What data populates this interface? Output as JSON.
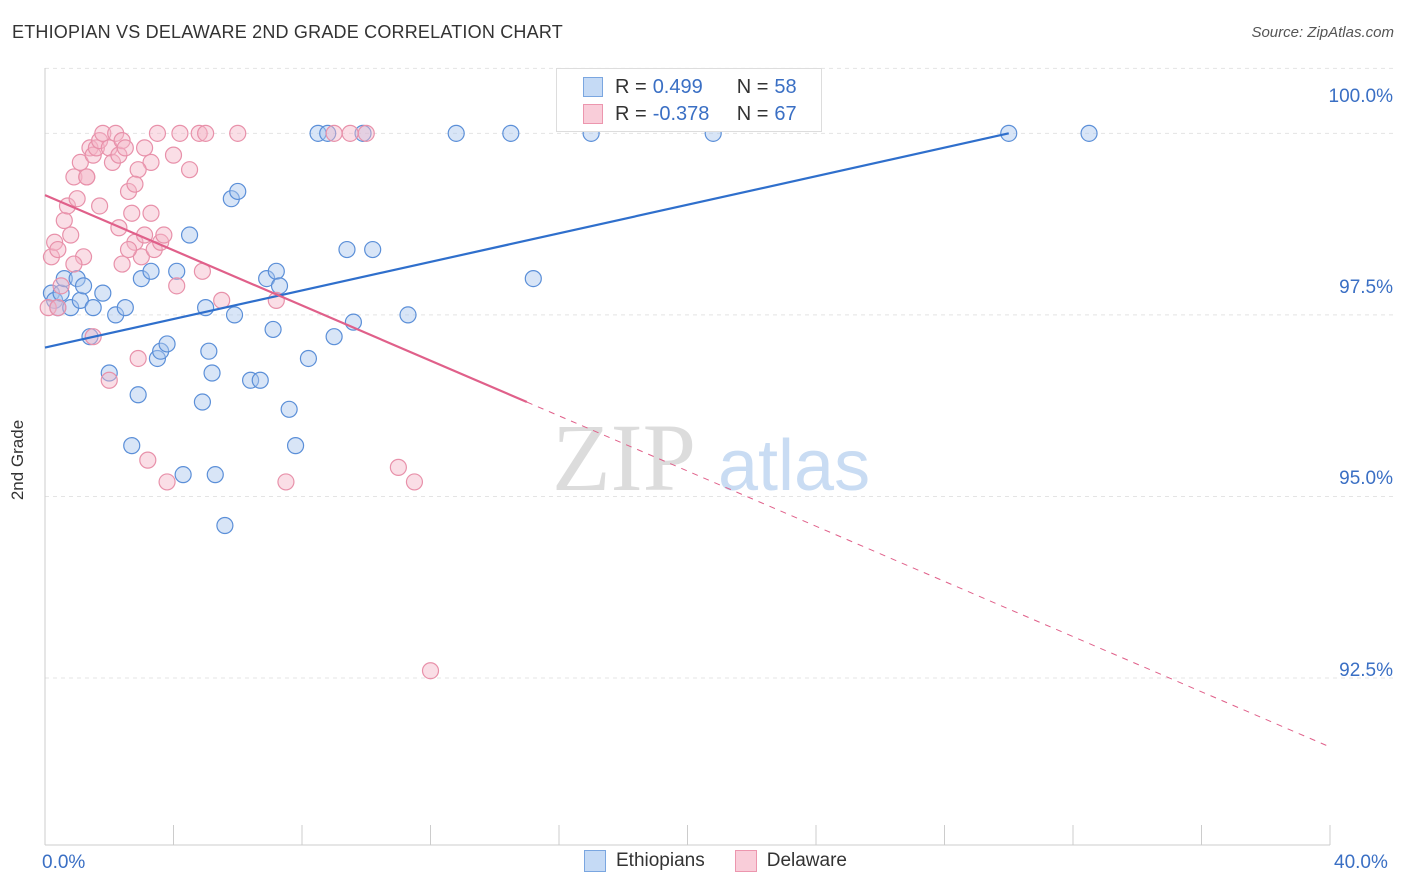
{
  "title": "ETHIOPIAN VS DELAWARE 2ND GRADE CORRELATION CHART",
  "source": "Source: ZipAtlas.com",
  "colors": {
    "blue": "#3a78d4",
    "pink": "#e0708f",
    "blue_fill": "#a8c6ee",
    "pink_fill": "#f5b5c8",
    "axis_text": "#3a6fc4"
  },
  "legend": {
    "r_label": "R =",
    "n_label": "N =",
    "series": [
      {
        "r": "0.499",
        "n": "58"
      },
      {
        "r": "-0.378",
        "n": "67"
      }
    ]
  },
  "chart_data": {
    "type": "scatter",
    "title": "ETHIOPIAN VS DELAWARE 2ND GRADE CORRELATION CHART",
    "xlabel": "",
    "ylabel": "2nd Grade",
    "xlim": [
      0,
      40
    ],
    "ylim": [
      90.2,
      100.9
    ],
    "x_tick_labels": [
      "0.0%",
      "40.0%"
    ],
    "y_ticks": [
      92.5,
      95.0,
      97.5,
      100.0
    ],
    "y_tick_labels": [
      "92.5%",
      "95.0%",
      "97.5%",
      "100.0%"
    ],
    "grid": true,
    "legend_position": "top-center",
    "watermark": "ZIPatlas",
    "series": [
      {
        "name": "Ethiopians",
        "trend": {
          "x": [
            0,
            30
          ],
          "y": [
            97.05,
            100.0
          ]
        },
        "x": [
          0.2,
          0.3,
          0.4,
          0.5,
          0.6,
          0.8,
          1.0,
          1.1,
          1.2,
          1.4,
          1.5,
          1.8,
          2.0,
          2.2,
          2.5,
          2.7,
          2.9,
          3.0,
          3.3,
          3.5,
          3.6,
          3.8,
          4.1,
          4.3,
          4.5,
          4.9,
          5.0,
          5.1,
          5.2,
          5.3,
          5.6,
          5.8,
          5.9,
          6.0,
          6.4,
          6.7,
          6.9,
          7.1,
          7.2,
          7.3,
          7.6,
          7.8,
          8.2,
          8.5,
          8.8,
          9.0,
          9.4,
          9.6,
          9.9,
          10.2,
          11.3,
          12.8,
          14.5,
          15.2,
          17.0,
          20.8,
          30.0,
          32.5
        ],
        "y": [
          97.8,
          97.7,
          97.6,
          97.8,
          98.0,
          97.6,
          98.0,
          97.7,
          97.9,
          97.2,
          97.6,
          97.8,
          96.7,
          97.5,
          97.6,
          95.7,
          96.4,
          98.0,
          98.1,
          96.9,
          97.0,
          97.1,
          98.1,
          95.3,
          98.6,
          96.3,
          97.6,
          97.0,
          96.7,
          95.3,
          94.6,
          99.1,
          97.5,
          99.2,
          96.6,
          96.6,
          98.0,
          97.3,
          98.1,
          97.9,
          96.2,
          95.7,
          96.9,
          100.0,
          100.0,
          97.2,
          98.4,
          97.4,
          100.0,
          98.4,
          97.5,
          100.0,
          100.0,
          98.0,
          100.0,
          100.0,
          100.0,
          100.0
        ]
      },
      {
        "name": "Delaware",
        "trend": {
          "x": [
            0,
            15
          ],
          "y": [
            99.15,
            96.3
          ]
        },
        "trend_extended": {
          "x": [
            15,
            40
          ],
          "y": [
            96.3,
            91.55
          ]
        },
        "x": [
          0.1,
          0.2,
          0.3,
          0.4,
          0.5,
          0.6,
          0.7,
          0.8,
          0.9,
          1.0,
          1.1,
          1.2,
          1.3,
          1.4,
          1.5,
          1.6,
          1.7,
          1.8,
          2.0,
          2.1,
          2.2,
          2.3,
          2.4,
          2.5,
          2.6,
          2.7,
          2.8,
          2.9,
          3.0,
          3.1,
          3.2,
          3.3,
          3.4,
          3.5,
          3.6,
          3.7,
          3.8,
          4.0,
          4.2,
          4.5,
          4.8,
          5.0,
          5.5,
          6.0,
          7.2,
          7.5,
          9.0,
          9.5,
          10.0,
          11.0,
          11.5,
          12.0,
          2.0,
          2.4,
          0.4,
          0.9,
          1.5,
          2.3,
          2.6,
          2.9,
          3.1,
          1.3,
          1.7,
          2.8,
          3.3,
          4.1,
          4.9
        ],
        "y": [
          97.6,
          98.3,
          98.5,
          98.4,
          97.9,
          98.8,
          99.0,
          98.6,
          99.4,
          99.1,
          99.6,
          98.3,
          99.4,
          99.8,
          99.7,
          99.8,
          99.9,
          100.0,
          99.8,
          99.6,
          100.0,
          99.7,
          99.9,
          99.8,
          99.2,
          98.9,
          98.5,
          96.9,
          98.3,
          98.6,
          95.5,
          99.6,
          98.4,
          100.0,
          98.5,
          98.6,
          95.2,
          99.7,
          100.0,
          99.5,
          100.0,
          100.0,
          97.7,
          100.0,
          97.7,
          95.2,
          100.0,
          100.0,
          100.0,
          95.4,
          95.2,
          92.6,
          96.6,
          98.2,
          97.6,
          98.2,
          97.2,
          98.7,
          98.4,
          99.5,
          99.8,
          99.4,
          99.0,
          99.3,
          98.9,
          97.9,
          98.1
        ]
      }
    ]
  },
  "bottom_legend": [
    "Ethiopians",
    "Delaware"
  ]
}
